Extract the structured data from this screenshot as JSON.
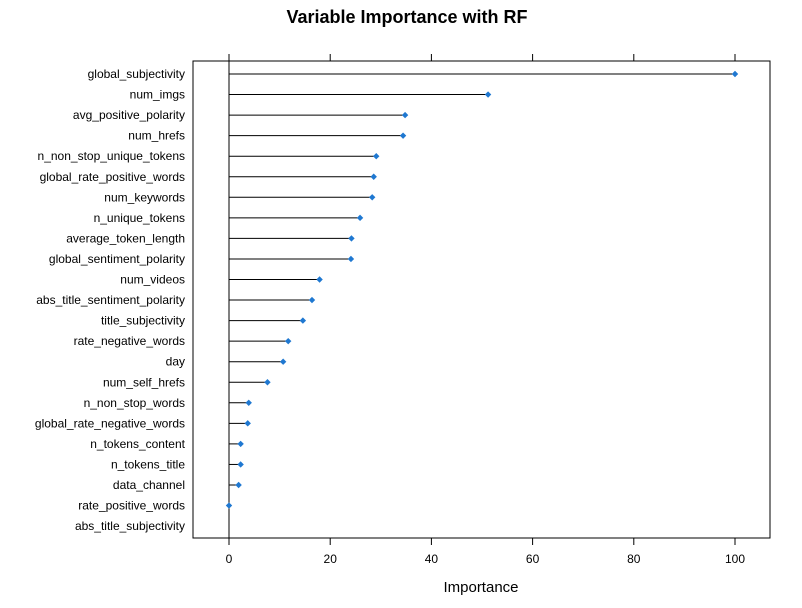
{
  "chart_data": {
    "type": "dot",
    "title": "Variable Importance with RF",
    "xlabel": "Importance",
    "ylabel": "",
    "xlim": [
      -7,
      107
    ],
    "xticks": [
      0,
      20,
      40,
      60,
      80,
      100
    ],
    "grid": false,
    "marker_color": "#1f78d1",
    "categories": [
      "global_subjectivity",
      "num_imgs",
      "avg_positive_polarity",
      "num_hrefs",
      "n_non_stop_unique_tokens",
      "global_rate_positive_words",
      "num_keywords",
      "n_unique_tokens",
      "average_token_length",
      "global_sentiment_polarity",
      "num_videos",
      "abs_title_sentiment_polarity",
      "title_subjectivity",
      "rate_negative_words",
      "day",
      "num_self_hrefs",
      "n_non_stop_words",
      "global_rate_negative_words",
      "n_tokens_content",
      "n_tokens_title",
      "data_channel",
      "rate_positive_words",
      "abs_title_subjectivity"
    ],
    "values": [
      100,
      51.2,
      34.8,
      34.4,
      29.1,
      28.6,
      28.3,
      25.9,
      24.2,
      24.1,
      17.9,
      16.4,
      14.6,
      11.7,
      10.7,
      7.6,
      3.9,
      3.7,
      2.3,
      2.3,
      1.9,
      0,
      null
    ]
  }
}
